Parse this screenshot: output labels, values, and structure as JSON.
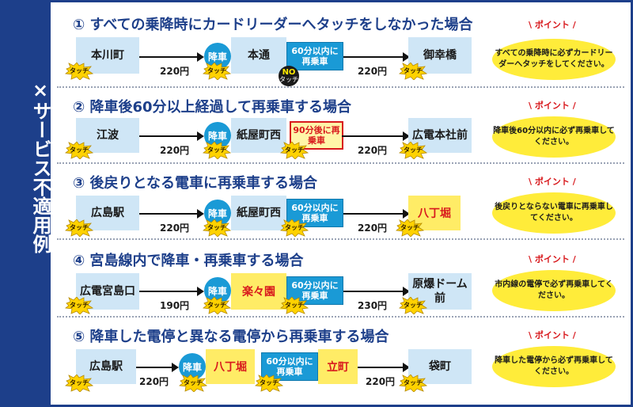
{
  "sidebar": {
    "title": "×サービス不適用例"
  },
  "common": {
    "touch": "タッチ",
    "alight": "降車",
    "point": "ポイント",
    "no": "NO",
    "no_touch": "タッチ"
  },
  "s1": {
    "heading": "① すべての乗降時にカードリーダーへタッチをしなかった場合",
    "from": "本川町",
    "fare1": "220円",
    "stop": "本通",
    "cond": "60分以内に再乗車",
    "fare2": "220円",
    "to": "御幸橋",
    "point": "すべての乗降時に必ずカードリーダーへタッチをしてください。"
  },
  "s2": {
    "heading": "② 降車後60分以上経過して再乗車する場合",
    "from": "江波",
    "fare1": "220円",
    "stop": "紙屋町西",
    "cond": "90分後に再乗車",
    "fare2": "220円",
    "to": "広電本社前",
    "point": "降車後60分以内に必ず再乗車してください。"
  },
  "s3": {
    "heading": "③ 後戻りとなる電車に再乗車する場合",
    "from": "広島駅",
    "fare1": "220円",
    "stop": "紙屋町西",
    "cond": "60分以内に再乗車",
    "fare2": "220円",
    "to": "八丁堀",
    "point": "後戻りとならない電車に再乗車してください。"
  },
  "s4": {
    "heading": "④ 宮島線内で降車・再乗車する場合",
    "from": "広電宮島口",
    "fare1": "190円",
    "stop": "楽々園",
    "cond": "60分以内に再乗車",
    "fare2": "230円",
    "to": "原爆ドーム前",
    "point": "市内線の電停で必ず再乗車してください。"
  },
  "s5": {
    "heading": "⑤ 降車した電停と異なる電停から再乗車する場合",
    "from": "広島駅",
    "fare1": "220円",
    "stop1": "八丁堀",
    "cond": "60分以内に再乗車",
    "stop2": "立町",
    "fare2": "220円",
    "to": "袋町",
    "point": "降車した電停から必ず再乗車してください。"
  },
  "colors": {
    "navy": "#1d3f8a",
    "station": "#cfe6f6",
    "highlight": "#ffec66",
    "cyan": "#1a9ad6",
    "red": "#d8191d",
    "oval": "#ffec3a"
  }
}
